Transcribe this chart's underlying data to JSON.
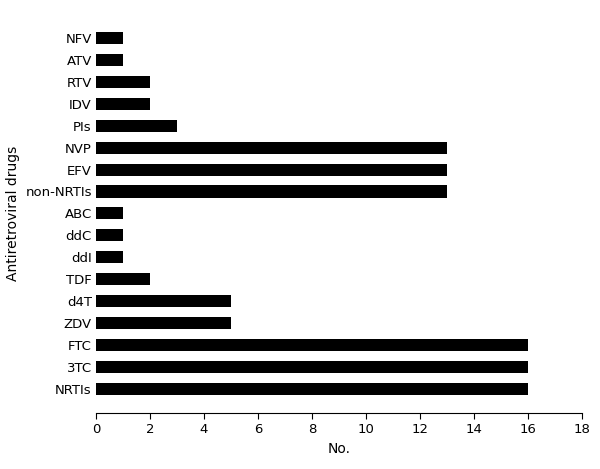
{
  "categories": [
    "NFV",
    "ATV",
    "RTV",
    "IDV",
    "PIs",
    "NVP",
    "EFV",
    "non-NRTIs",
    "ABC",
    "ddC",
    "ddI",
    "TDF",
    "d4T",
    "ZDV",
    "FTC",
    "3TC",
    "NRTIs"
  ],
  "values": [
    1,
    1,
    2,
    2,
    3,
    13,
    13,
    13,
    1,
    1,
    1,
    2,
    5,
    5,
    16,
    16,
    16
  ],
  "bar_color": "#000000",
  "xlabel": "No.",
  "ylabel": "Antiretroviral drugs",
  "xlim": [
    0,
    18
  ],
  "xticks": [
    0,
    2,
    4,
    6,
    8,
    10,
    12,
    14,
    16,
    18
  ],
  "bar_height": 0.55,
  "background_color": "#ffffff",
  "xlabel_fontsize": 10,
  "ylabel_fontsize": 10,
  "tick_fontsize": 9.5,
  "figsize": [
    6.0,
    4.69
  ],
  "dpi": 100
}
